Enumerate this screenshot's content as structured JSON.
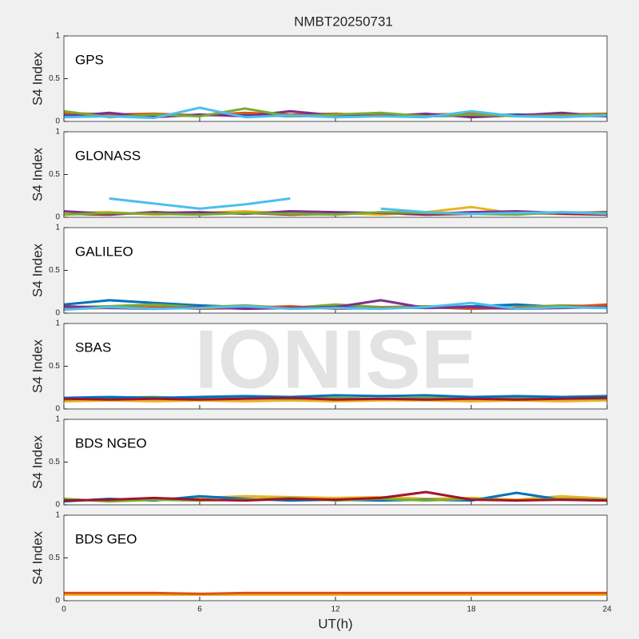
{
  "title": "NMBT20250731",
  "xlabel": "UT(h)",
  "watermark": "IONISE",
  "chart_data": [
    {
      "type": "line",
      "title": "GPS",
      "ylabel": "S4 Index",
      "xlim": [
        0,
        24
      ],
      "ylim": [
        0,
        1
      ],
      "yticks": [
        0,
        0.5,
        1
      ],
      "xticks": [
        0,
        6,
        12,
        18,
        24
      ],
      "xtick_labels": false,
      "x": [
        0,
        2,
        4,
        6,
        8,
        10,
        12,
        14,
        16,
        18,
        20,
        22,
        24
      ],
      "series": [
        {
          "color": "#0072BD",
          "values": [
            0.08,
            0.07,
            0.06,
            0.07,
            0.08,
            0.06,
            0.07,
            0.08,
            0.06,
            0.07,
            0.08,
            0.07,
            0.06
          ]
        },
        {
          "color": "#D95319",
          "values": [
            0.1,
            0.08,
            0.09,
            0.07,
            0.1,
            0.08,
            0.09,
            0.07,
            0.08,
            0.09,
            0.07,
            0.08,
            0.09
          ]
        },
        {
          "color": "#7E2F8E",
          "values": [
            0.06,
            0.1,
            0.05,
            0.08,
            0.06,
            0.12,
            0.07,
            0.06,
            0.09,
            0.05,
            0.07,
            0.1,
            0.06
          ]
        },
        {
          "color": "#77AC30",
          "values": [
            0.12,
            0.05,
            0.08,
            0.06,
            0.15,
            0.06,
            0.08,
            0.1,
            0.06,
            0.08,
            0.06,
            0.07,
            0.08
          ]
        },
        {
          "color": "#4DBEEE",
          "values": [
            0.05,
            0.06,
            0.04,
            0.16,
            0.05,
            0.07,
            0.05,
            0.06,
            0.05,
            0.12,
            0.06,
            0.05,
            0.07
          ]
        }
      ]
    },
    {
      "type": "line",
      "title": "GLONASS",
      "ylabel": "S4 Index",
      "xlim": [
        0,
        24
      ],
      "ylim": [
        0,
        1
      ],
      "yticks": [
        0,
        0.5,
        1
      ],
      "xticks": [
        0,
        6,
        12,
        18,
        24
      ],
      "xtick_labels": false,
      "x": [
        0,
        2,
        4,
        6,
        8,
        10,
        12,
        14,
        16,
        18,
        20,
        22,
        24
      ],
      "series": [
        {
          "color": "#A2142F",
          "values": [
            0.04,
            0.03,
            0.06,
            0.04,
            0.05,
            0.03,
            0.04,
            0.05,
            0.03,
            0.04,
            0.05,
            0.04,
            0.03
          ]
        },
        {
          "color": "#EDB120",
          "values": [
            0.05,
            0.06,
            0.03,
            0.05,
            0.07,
            0.04,
            0.05,
            0.03,
            0.06,
            0.12,
            0.04,
            0.05,
            0.06
          ]
        },
        {
          "color": "#7E2F8E",
          "values": [
            0.07,
            0.04,
            0.05,
            0.06,
            0.04,
            0.07,
            0.06,
            0.05,
            0.04,
            0.06,
            0.07,
            0.05,
            0.06
          ]
        },
        {
          "color": "#77AC30",
          "values": [
            0.03,
            0.05,
            0.04,
            0.03,
            0.05,
            0.04,
            0.03,
            0.06,
            0.05,
            0.04,
            0.03,
            0.06,
            0.05
          ]
        },
        {
          "color": "#4DBEEE",
          "values": [
            null,
            0.22,
            0.16,
            0.1,
            0.15,
            0.22,
            null,
            0.1,
            0.06,
            0.04,
            0.05,
            0.06,
            0.04
          ]
        }
      ]
    },
    {
      "type": "line",
      "title": "GALILEO",
      "ylabel": "S4 Index",
      "xlim": [
        0,
        24
      ],
      "ylim": [
        0,
        1
      ],
      "yticks": [
        0,
        0.5,
        1
      ],
      "xticks": [
        0,
        6,
        12,
        18,
        24
      ],
      "xtick_labels": false,
      "x": [
        0,
        2,
        4,
        6,
        8,
        10,
        12,
        14,
        16,
        18,
        20,
        22,
        24
      ],
      "series": [
        {
          "color": "#0072BD",
          "values": [
            0.1,
            0.15,
            0.12,
            0.09,
            0.07,
            0.06,
            0.08,
            0.07,
            0.06,
            0.08,
            0.1,
            0.07,
            0.06
          ]
        },
        {
          "color": "#77AC30",
          "values": [
            0.07,
            0.08,
            0.1,
            0.07,
            0.09,
            0.06,
            0.1,
            0.07,
            0.08,
            0.06,
            0.07,
            0.09,
            0.08
          ]
        },
        {
          "color": "#D95319",
          "values": [
            0.05,
            0.06,
            0.07,
            0.05,
            0.06,
            0.08,
            0.05,
            0.06,
            0.07,
            0.05,
            0.06,
            0.07,
            0.1
          ]
        },
        {
          "color": "#7E2F8E",
          "values": [
            0.08,
            0.06,
            0.05,
            0.07,
            0.05,
            0.06,
            0.07,
            0.15,
            0.06,
            0.07,
            0.05,
            0.06,
            0.07
          ]
        },
        {
          "color": "#4DBEEE",
          "values": [
            0.04,
            0.07,
            0.05,
            0.06,
            0.08,
            0.05,
            0.06,
            0.05,
            0.07,
            0.12,
            0.05,
            0.07,
            0.06
          ]
        }
      ]
    },
    {
      "type": "line",
      "title": "SBAS",
      "ylabel": "S4 Index",
      "xlim": [
        0,
        24
      ],
      "ylim": [
        0,
        1
      ],
      "yticks": [
        0,
        0.5,
        1
      ],
      "xticks": [
        0,
        6,
        12,
        18,
        24
      ],
      "xtick_labels": false,
      "x": [
        0,
        2,
        4,
        6,
        8,
        10,
        12,
        14,
        16,
        18,
        20,
        22,
        24
      ],
      "series": [
        {
          "color": "#EDB120",
          "values": [
            0.09,
            0.1,
            0.09,
            0.1,
            0.09,
            0.1,
            0.09,
            0.1,
            0.1,
            0.09,
            0.1,
            0.09,
            0.1
          ]
        },
        {
          "color": "#77AC30",
          "values": [
            0.11,
            0.13,
            0.14,
            0.12,
            0.13,
            0.12,
            0.13,
            0.12,
            0.13,
            0.12,
            0.13,
            0.12,
            0.12
          ]
        },
        {
          "color": "#0072BD",
          "values": [
            0.13,
            0.14,
            0.13,
            0.14,
            0.15,
            0.14,
            0.16,
            0.15,
            0.16,
            0.14,
            0.15,
            0.14,
            0.15
          ]
        },
        {
          "color": "#A2142F",
          "values": [
            0.12,
            0.11,
            0.12,
            0.11,
            0.12,
            0.13,
            0.11,
            0.12,
            0.11,
            0.12,
            0.11,
            0.12,
            0.13
          ]
        }
      ]
    },
    {
      "type": "line",
      "title": "BDS NGEO",
      "ylabel": "S4 Index",
      "xlim": [
        0,
        24
      ],
      "ylim": [
        0,
        1
      ],
      "yticks": [
        0,
        0.5,
        1
      ],
      "xticks": [
        0,
        6,
        12,
        18,
        24
      ],
      "xtick_labels": false,
      "x": [
        0,
        2,
        4,
        6,
        8,
        10,
        12,
        14,
        16,
        18,
        20,
        22,
        24
      ],
      "series": [
        {
          "color": "#EDB120",
          "values": [
            0.06,
            0.05,
            0.06,
            0.08,
            0.1,
            0.09,
            0.08,
            0.09,
            0.07,
            0.08,
            0.06,
            0.1,
            0.07
          ]
        },
        {
          "color": "#0072BD",
          "values": [
            0.04,
            0.07,
            0.05,
            0.1,
            0.07,
            0.05,
            0.06,
            0.05,
            0.06,
            0.05,
            0.14,
            0.06,
            0.05
          ]
        },
        {
          "color": "#77AC30",
          "values": [
            0.07,
            0.04,
            0.06,
            0.05,
            0.06,
            0.08,
            0.05,
            0.07,
            0.05,
            0.07,
            0.05,
            0.07,
            0.06
          ]
        },
        {
          "color": "#A2142F",
          "values": [
            0.05,
            0.06,
            0.08,
            0.06,
            0.05,
            0.07,
            0.06,
            0.08,
            0.15,
            0.06,
            0.05,
            0.06,
            0.05
          ]
        }
      ]
    },
    {
      "type": "line",
      "title": "BDS GEO",
      "ylabel": "S4 Index",
      "xlim": [
        0,
        24
      ],
      "ylim": [
        0,
        1
      ],
      "yticks": [
        0,
        0.5,
        1
      ],
      "xticks": [
        0,
        6,
        12,
        18,
        24
      ],
      "xtick_labels": true,
      "x": [
        0,
        2,
        4,
        6,
        8,
        10,
        12,
        14,
        16,
        18,
        20,
        22,
        24
      ],
      "series": [
        {
          "color": "#EDB120",
          "values": [
            0.07,
            0.07,
            0.07,
            0.07,
            0.07,
            0.07,
            0.07,
            0.07,
            0.07,
            0.07,
            0.07,
            0.07,
            0.07
          ]
        },
        {
          "color": "#D95319",
          "values": [
            0.09,
            0.09,
            0.09,
            0.08,
            0.09,
            0.09,
            0.09,
            0.09,
            0.09,
            0.09,
            0.09,
            0.09,
            0.09
          ]
        }
      ]
    }
  ]
}
